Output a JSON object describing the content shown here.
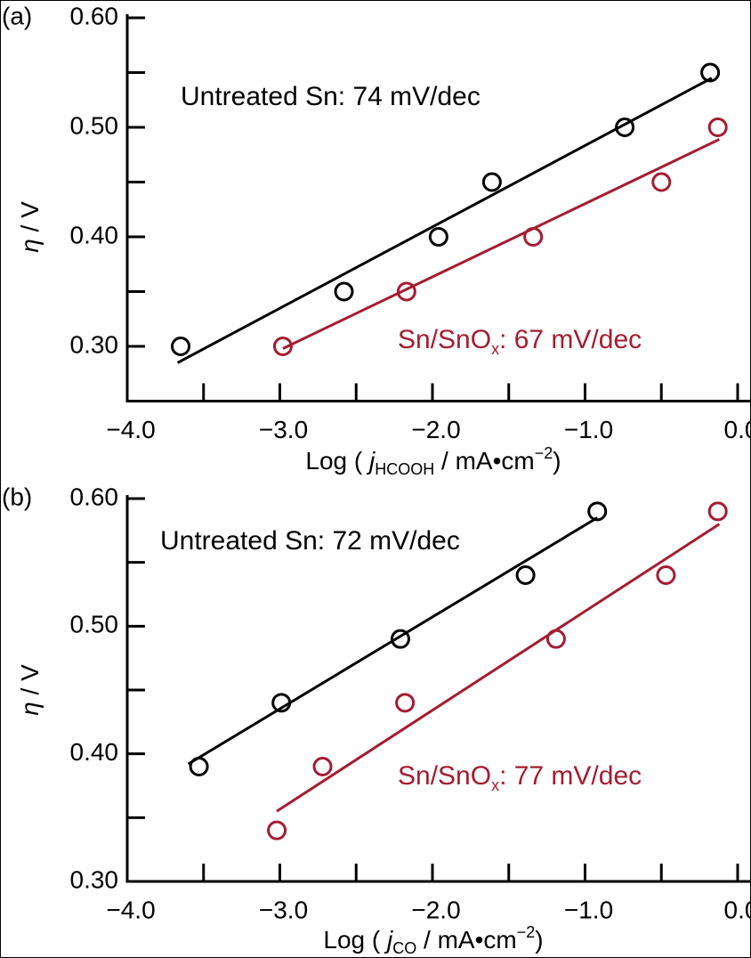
{
  "chart_data": [
    {
      "type": "scatter",
      "panel_label": "(a)",
      "x_label": {
        "prefix": "Log ( ",
        "var": "j",
        "sub": "HCOOH",
        "suffix": " / mA•cm",
        "sup": "−2",
        "end": ")"
      },
      "y_label": {
        "var": "η",
        "rest": " / V"
      },
      "xlim": [
        -4,
        0
      ],
      "xticks": [
        {
          "value": -4,
          "label": "−4.0"
        },
        {
          "value": -3,
          "label": "−3.0"
        },
        {
          "value": -2,
          "label": "−2.0"
        },
        {
          "value": -1,
          "label": "−1.0"
        },
        {
          "value": 0,
          "label": "0.0"
        }
      ],
      "ylim": [
        0.25,
        0.6
      ],
      "yticks": [
        {
          "value": 0.3,
          "label": "0.30"
        },
        {
          "value": 0.4,
          "label": "0.40"
        },
        {
          "value": 0.5,
          "label": "0.50"
        },
        {
          "value": 0.6,
          "label": "0.60"
        }
      ],
      "series": [
        {
          "color": "#000000",
          "x": [
            -3.65,
            -2.58,
            -1.96,
            -1.61,
            -0.74,
            -0.18
          ],
          "values": [
            0.3,
            0.35,
            0.4,
            0.45,
            0.5,
            0.55
          ],
          "fit_x": [
            -3.67,
            -0.17
          ],
          "fit_values": [
            0.285,
            0.545
          ]
        },
        {
          "color": "#a51c30",
          "x": [
            -2.98,
            -2.17,
            -1.34,
            -0.5,
            -0.13
          ],
          "values": [
            0.3,
            0.35,
            0.4,
            0.45,
            0.5
          ],
          "fit_x": [
            -2.98,
            -0.12
          ],
          "fit_values": [
            0.298,
            0.489
          ]
        }
      ],
      "annotations": [
        {
          "text": "Untreated Sn: 74 mV/dec",
          "color": "#000000"
        },
        {
          "text": "Sn/SnO",
          "sub": "x",
          "text2": ": 67 mV/dec",
          "color": "#a51c30"
        }
      ]
    },
    {
      "type": "scatter",
      "panel_label": "(b)",
      "x_label": {
        "prefix": "Log ( ",
        "var": "j",
        "sub": "CO",
        "suffix": " / mA•cm",
        "sup": "−2",
        "end": ")"
      },
      "y_label": {
        "var": "η",
        "rest": " / V"
      },
      "xlim": [
        -4,
        0
      ],
      "xticks": [
        {
          "value": -4,
          "label": "−4.0"
        },
        {
          "value": -3,
          "label": "−3.0"
        },
        {
          "value": -2,
          "label": "−2.0"
        },
        {
          "value": -1,
          "label": "−1.0"
        },
        {
          "value": 0,
          "label": "0.0"
        }
      ],
      "ylim": [
        0.3,
        0.6
      ],
      "yticks": [
        {
          "value": 0.3,
          "label": "0.30"
        },
        {
          "value": 0.4,
          "label": "0.40"
        },
        {
          "value": 0.5,
          "label": "0.50"
        },
        {
          "value": 0.6,
          "label": "0.60"
        }
      ],
      "series": [
        {
          "color": "#000000",
          "x": [
            -3.53,
            -2.99,
            -2.21,
            -1.39,
            -0.92
          ],
          "values": [
            0.39,
            0.44,
            0.49,
            0.54,
            0.59
          ],
          "fit_x": [
            -3.6,
            -0.92
          ],
          "fit_values": [
            0.392,
            0.585
          ]
        },
        {
          "color": "#a51c30",
          "x": [
            -3.02,
            -2.72,
            -2.18,
            -1.19,
            -0.47,
            -0.13
          ],
          "values": [
            0.34,
            0.39,
            0.44,
            0.49,
            0.54,
            0.59
          ],
          "fit_x": [
            -3.02,
            -0.12
          ],
          "fit_values": [
            0.355,
            0.58
          ]
        }
      ],
      "annotations": [
        {
          "text": "Untreated Sn: 72 mV/dec",
          "color": "#000000"
        },
        {
          "text": "Sn/SnO",
          "sub": "x",
          "text2": ": 77 mV/dec",
          "color": "#a51c30"
        }
      ]
    }
  ]
}
